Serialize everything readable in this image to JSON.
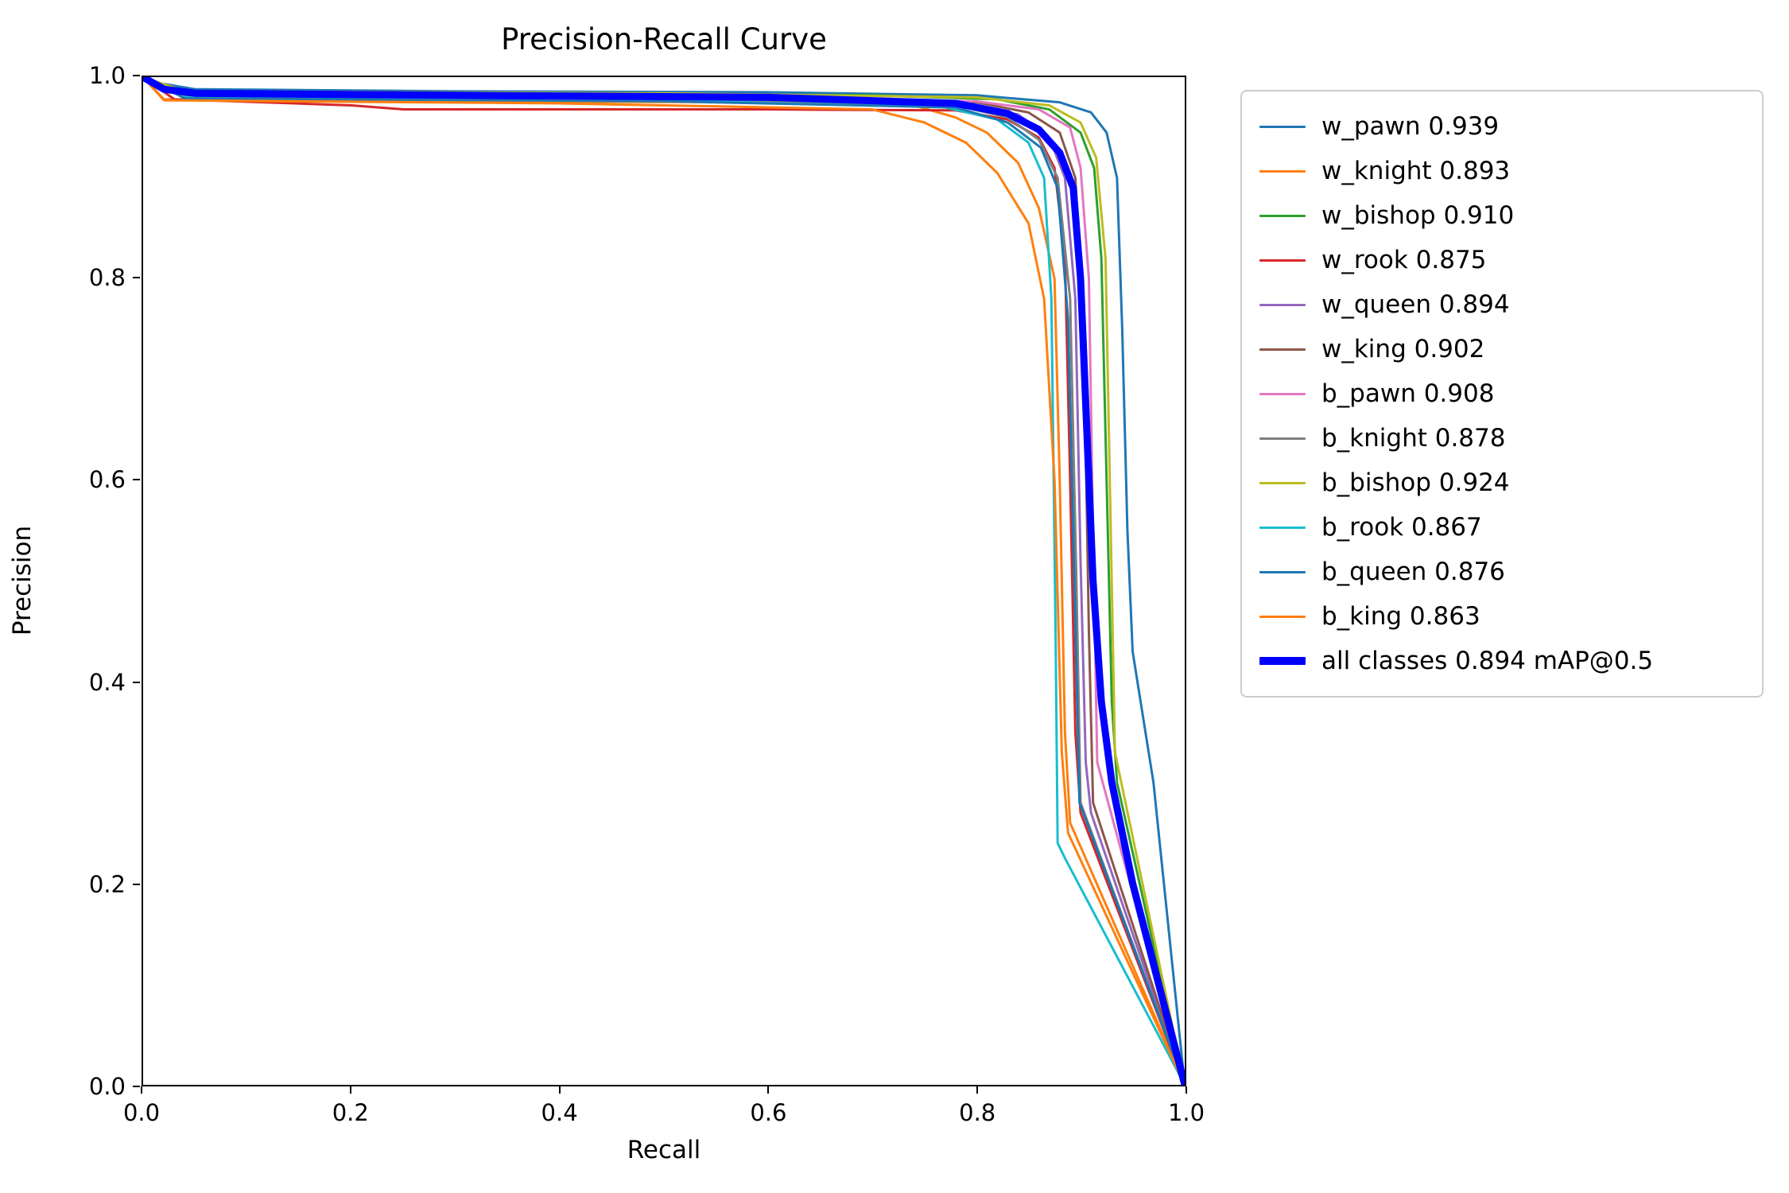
{
  "chart_data": {
    "type": "line",
    "title": "Precision-Recall Curve",
    "xlabel": "Recall",
    "ylabel": "Precision",
    "xlim": [
      0.0,
      1.0
    ],
    "ylim": [
      0.0,
      1.0
    ],
    "xticks": [
      "0.0",
      "0.2",
      "0.4",
      "0.6",
      "0.8",
      "1.0"
    ],
    "yticks": [
      "0.0",
      "0.2",
      "0.4",
      "0.6",
      "0.8",
      "1.0"
    ],
    "grid": false,
    "legend_position": "right",
    "series": [
      {
        "name": "w_pawn",
        "label": "w_pawn 0.939",
        "ap": 0.939,
        "color": "#1f77b4",
        "line_width": 3,
        "points": [
          [
            0,
            1.0
          ],
          [
            0.01,
            0.995
          ],
          [
            0.05,
            0.988
          ],
          [
            0.3,
            0.986
          ],
          [
            0.6,
            0.985
          ],
          [
            0.8,
            0.982
          ],
          [
            0.88,
            0.975
          ],
          [
            0.91,
            0.965
          ],
          [
            0.925,
            0.945
          ],
          [
            0.935,
            0.9
          ],
          [
            0.94,
            0.75
          ],
          [
            0.945,
            0.55
          ],
          [
            0.95,
            0.43
          ],
          [
            0.97,
            0.3
          ],
          [
            1.0,
            0.0
          ]
        ]
      },
      {
        "name": "w_knight",
        "label": "w_knight 0.893",
        "ap": 0.893,
        "color": "#ff7f0e",
        "line_width": 3,
        "points": [
          [
            0,
            1.0
          ],
          [
            0.02,
            0.978
          ],
          [
            0.3,
            0.976
          ],
          [
            0.6,
            0.975
          ],
          [
            0.74,
            0.972
          ],
          [
            0.78,
            0.96
          ],
          [
            0.81,
            0.945
          ],
          [
            0.84,
            0.915
          ],
          [
            0.86,
            0.87
          ],
          [
            0.875,
            0.8
          ],
          [
            0.88,
            0.6
          ],
          [
            0.885,
            0.35
          ],
          [
            0.89,
            0.26
          ],
          [
            1.0,
            0.0
          ]
        ]
      },
      {
        "name": "w_bishop",
        "label": "w_bishop 0.910",
        "ap": 0.91,
        "color": "#2ca02c",
        "line_width": 3,
        "points": [
          [
            0,
            1.0
          ],
          [
            0.04,
            0.986
          ],
          [
            0.4,
            0.983
          ],
          [
            0.7,
            0.982
          ],
          [
            0.82,
            0.978
          ],
          [
            0.87,
            0.968
          ],
          [
            0.9,
            0.945
          ],
          [
            0.913,
            0.91
          ],
          [
            0.92,
            0.82
          ],
          [
            0.925,
            0.6
          ],
          [
            0.93,
            0.38
          ],
          [
            0.935,
            0.3
          ],
          [
            1.0,
            0.0
          ]
        ]
      },
      {
        "name": "w_rook",
        "label": "w_rook 0.875",
        "ap": 0.875,
        "color": "#d62728",
        "line_width": 3,
        "points": [
          [
            0,
            1.0
          ],
          [
            0.03,
            0.978
          ],
          [
            0.2,
            0.972
          ],
          [
            0.25,
            0.968
          ],
          [
            0.6,
            0.968
          ],
          [
            0.78,
            0.967
          ],
          [
            0.83,
            0.958
          ],
          [
            0.86,
            0.94
          ],
          [
            0.875,
            0.91
          ],
          [
            0.885,
            0.82
          ],
          [
            0.89,
            0.6
          ],
          [
            0.895,
            0.35
          ],
          [
            0.9,
            0.27
          ],
          [
            1.0,
            0.0
          ]
        ]
      },
      {
        "name": "w_queen",
        "label": "w_queen 0.894",
        "ap": 0.894,
        "color": "#9467bd",
        "line_width": 3,
        "points": [
          [
            0,
            1.0
          ],
          [
            0.04,
            0.981
          ],
          [
            0.5,
            0.979
          ],
          [
            0.78,
            0.975
          ],
          [
            0.84,
            0.963
          ],
          [
            0.87,
            0.94
          ],
          [
            0.885,
            0.9
          ],
          [
            0.895,
            0.78
          ],
          [
            0.9,
            0.52
          ],
          [
            0.905,
            0.32
          ],
          [
            0.91,
            0.27
          ],
          [
            1.0,
            0.0
          ]
        ]
      },
      {
        "name": "w_king",
        "label": "w_king 0.902",
        "ap": 0.902,
        "color": "#8c564b",
        "line_width": 3,
        "points": [
          [
            0,
            1.0
          ],
          [
            0.04,
            0.982
          ],
          [
            0.5,
            0.98
          ],
          [
            0.8,
            0.975
          ],
          [
            0.85,
            0.965
          ],
          [
            0.88,
            0.945
          ],
          [
            0.895,
            0.9
          ],
          [
            0.903,
            0.75
          ],
          [
            0.908,
            0.45
          ],
          [
            0.912,
            0.28
          ],
          [
            1.0,
            0.0
          ]
        ]
      },
      {
        "name": "b_pawn",
        "label": "b_pawn 0.908",
        "ap": 0.908,
        "color": "#e377c2",
        "line_width": 3,
        "points": [
          [
            0,
            1.0
          ],
          [
            0.04,
            0.983
          ],
          [
            0.5,
            0.98
          ],
          [
            0.8,
            0.976
          ],
          [
            0.86,
            0.968
          ],
          [
            0.89,
            0.95
          ],
          [
            0.9,
            0.91
          ],
          [
            0.908,
            0.8
          ],
          [
            0.912,
            0.55
          ],
          [
            0.916,
            0.32
          ],
          [
            1.0,
            0.0
          ]
        ]
      },
      {
        "name": "b_knight",
        "label": "b_knight 0.878",
        "ap": 0.878,
        "color": "#7f7f7f",
        "line_width": 3,
        "points": [
          [
            0,
            1.0
          ],
          [
            0.04,
            0.98
          ],
          [
            0.5,
            0.977
          ],
          [
            0.78,
            0.972
          ],
          [
            0.83,
            0.96
          ],
          [
            0.86,
            0.938
          ],
          [
            0.878,
            0.9
          ],
          [
            0.89,
            0.78
          ],
          [
            0.896,
            0.5
          ],
          [
            0.9,
            0.28
          ],
          [
            1.0,
            0.0
          ]
        ]
      },
      {
        "name": "b_bishop",
        "label": "b_bishop 0.924",
        "ap": 0.924,
        "color": "#bcbd22",
        "line_width": 3,
        "points": [
          [
            0,
            1.0
          ],
          [
            0.04,
            0.986
          ],
          [
            0.5,
            0.984
          ],
          [
            0.8,
            0.98
          ],
          [
            0.87,
            0.972
          ],
          [
            0.9,
            0.955
          ],
          [
            0.915,
            0.92
          ],
          [
            0.924,
            0.82
          ],
          [
            0.929,
            0.55
          ],
          [
            0.933,
            0.33
          ],
          [
            1.0,
            0.0
          ]
        ]
      },
      {
        "name": "b_rook",
        "label": "b_rook 0.867",
        "ap": 0.867,
        "color": "#17becf",
        "line_width": 3,
        "points": [
          [
            0,
            1.0
          ],
          [
            0.04,
            0.98
          ],
          [
            0.5,
            0.977
          ],
          [
            0.77,
            0.97
          ],
          [
            0.82,
            0.958
          ],
          [
            0.85,
            0.935
          ],
          [
            0.865,
            0.9
          ],
          [
            0.872,
            0.78
          ],
          [
            0.876,
            0.45
          ],
          [
            0.878,
            0.24
          ],
          [
            0.885,
            0.225
          ],
          [
            1.0,
            0.0
          ]
        ]
      },
      {
        "name": "b_queen",
        "label": "b_queen 0.876",
        "ap": 0.876,
        "color": "#1f77b4",
        "line_width": 3,
        "points": [
          [
            0,
            1.0
          ],
          [
            0.04,
            0.979
          ],
          [
            0.5,
            0.976
          ],
          [
            0.78,
            0.97
          ],
          [
            0.83,
            0.955
          ],
          [
            0.862,
            0.93
          ],
          [
            0.878,
            0.89
          ],
          [
            0.888,
            0.76
          ],
          [
            0.894,
            0.5
          ],
          [
            0.899,
            0.28
          ],
          [
            1.0,
            0.0
          ]
        ]
      },
      {
        "name": "b_king",
        "label": "b_king 0.863",
        "ap": 0.863,
        "color": "#ff7f0e",
        "line_width": 3,
        "points": [
          [
            0,
            1.0
          ],
          [
            0.02,
            0.977
          ],
          [
            0.4,
            0.974
          ],
          [
            0.7,
            0.968
          ],
          [
            0.75,
            0.955
          ],
          [
            0.79,
            0.935
          ],
          [
            0.82,
            0.905
          ],
          [
            0.85,
            0.855
          ],
          [
            0.865,
            0.78
          ],
          [
            0.875,
            0.6
          ],
          [
            0.882,
            0.33
          ],
          [
            0.888,
            0.25
          ],
          [
            1.0,
            0.0
          ]
        ]
      },
      {
        "name": "all_classes",
        "label": "all classes 0.894 mAP@0.5",
        "ap": 0.894,
        "color": "#0000ff",
        "line_width": 9,
        "points": [
          [
            0,
            1.0
          ],
          [
            0.02,
            0.988
          ],
          [
            0.05,
            0.984
          ],
          [
            0.3,
            0.982
          ],
          [
            0.6,
            0.98
          ],
          [
            0.78,
            0.974
          ],
          [
            0.83,
            0.964
          ],
          [
            0.86,
            0.948
          ],
          [
            0.88,
            0.925
          ],
          [
            0.893,
            0.89
          ],
          [
            0.9,
            0.8
          ],
          [
            0.906,
            0.65
          ],
          [
            0.912,
            0.5
          ],
          [
            0.92,
            0.38
          ],
          [
            0.93,
            0.3
          ],
          [
            0.95,
            0.2
          ],
          [
            0.97,
            0.12
          ],
          [
            1.0,
            0.0
          ]
        ]
      }
    ]
  }
}
